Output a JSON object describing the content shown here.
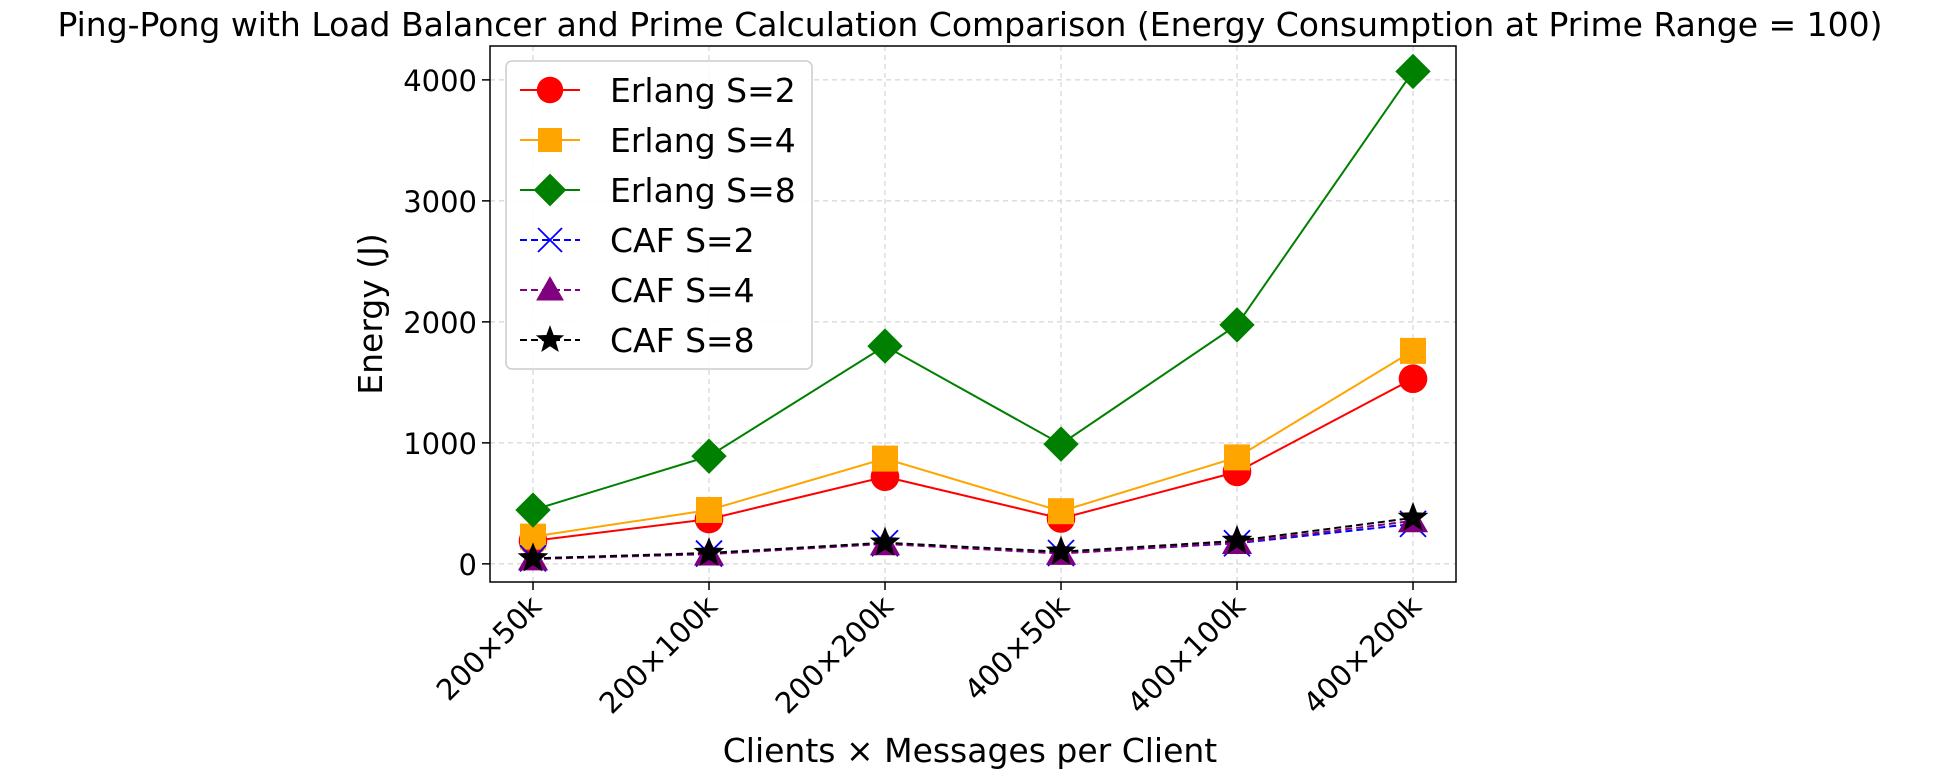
{
  "chart_data": {
    "type": "line",
    "title": "Ping-Pong with Load Balancer and Prime Calculation Comparison (Energy Consumption at Prime Range = 100)",
    "xlabel": "Clients × Messages per Client",
    "ylabel": "Energy (J)",
    "categories": [
      "200×50k",
      "200×100k",
      "200×200k",
      "400×50k",
      "400×100k",
      "400×200k"
    ],
    "ylim": [
      -150,
      4280
    ],
    "yticks": [
      0,
      1000,
      2000,
      3000,
      4000
    ],
    "grid": true,
    "legend_position": "top-left",
    "series": [
      {
        "name": "Erlang S=2",
        "color": "#ff0000",
        "marker": "circle",
        "line_style": "solid",
        "values": [
          190,
          370,
          720,
          375,
          760,
          1530
        ]
      },
      {
        "name": "Erlang S=4",
        "color": "#ffa500",
        "marker": "square",
        "line_style": "solid",
        "values": [
          225,
          445,
          870,
          435,
          880,
          1760
        ]
      },
      {
        "name": "Erlang S=8",
        "color": "#008000",
        "marker": "diamond",
        "line_style": "solid",
        "values": [
          445,
          890,
          1800,
          990,
          1975,
          4070
        ]
      },
      {
        "name": "CAF S=2",
        "color": "#0000ff",
        "marker": "x",
        "line_style": "dashed",
        "values": [
          45,
          85,
          170,
          90,
          170,
          330
        ]
      },
      {
        "name": "CAF S=4",
        "color": "#800080",
        "marker": "triangle",
        "line_style": "dashed",
        "values": [
          40,
          80,
          165,
          85,
          175,
          355
        ]
      },
      {
        "name": "CAF S=8",
        "color": "#000000",
        "marker": "star",
        "line_style": "dashed",
        "values": [
          45,
          90,
          175,
          100,
          190,
          380
        ]
      }
    ]
  }
}
